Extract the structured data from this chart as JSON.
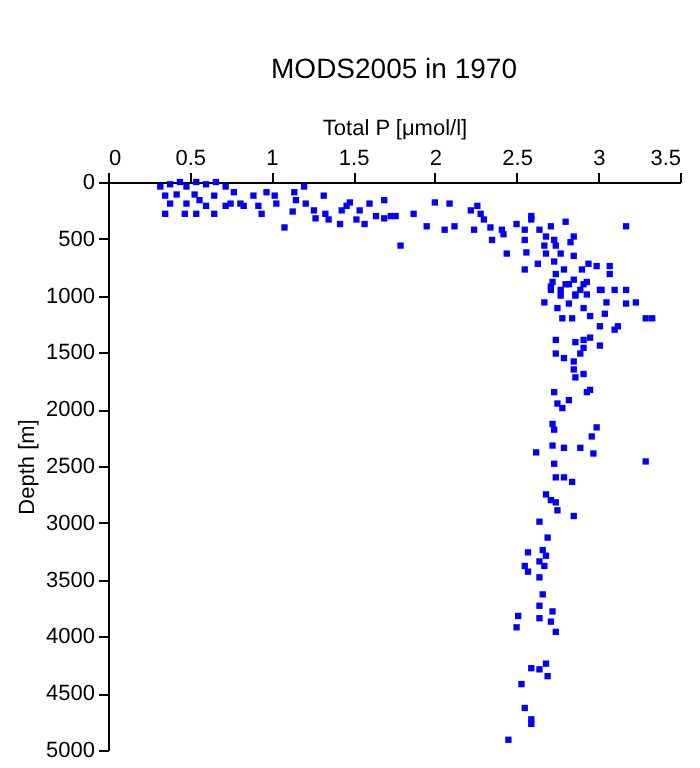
{
  "chart_data": {
    "type": "scatter",
    "title": "MODS2005 in 1970",
    "xlabel": "Total P [μmol/l]",
    "ylabel": "Depth [m]",
    "xlim": [
      0,
      3.5
    ],
    "xticks": [
      0,
      0.5,
      1,
      1.5,
      2,
      2.5,
      3,
      3.5
    ],
    "ylim": [
      5000,
      0
    ],
    "yticks": [
      0,
      500,
      1000,
      1500,
      2000,
      2500,
      3000,
      3500,
      4000,
      4500,
      5000
    ],
    "grid": false,
    "marker": "square",
    "series": [
      {
        "color": "#0000ff",
        "x": [
          0.32,
          0.38,
          0.44,
          0.48,
          0.54,
          0.6,
          0.66,
          0.35,
          0.42,
          0.53,
          0.56,
          0.48,
          0.38,
          0.65,
          0.72,
          0.77,
          0.75,
          0.81,
          0.6,
          0.72,
          0.47,
          0.35,
          0.54,
          0.65,
          0.83,
          0.89,
          0.92,
          0.94,
          0.97,
          1.02,
          1.03,
          1.08,
          1.13,
          1.14,
          1.15,
          1.2,
          1.21,
          1.26,
          1.27,
          1.32,
          1.33,
          1.35,
          1.42,
          1.43,
          1.46,
          1.48,
          1.52,
          1.54,
          1.57,
          1.6,
          1.64,
          1.69,
          1.69,
          1.73,
          1.76,
          1.79,
          1.87,
          1.95,
          2.0,
          2.06,
          2.09,
          2.12,
          2.22,
          2.26,
          2.28,
          2.24,
          2.3,
          2.34,
          2.35,
          2.41,
          2.42,
          2.44,
          2.5,
          2.55,
          2.55,
          2.56,
          2.59,
          2.59,
          2.64,
          2.67,
          2.68,
          2.68,
          2.71,
          2.73,
          2.74,
          2.77,
          2.8,
          2.83,
          2.85,
          2.85,
          2.55,
          2.63,
          2.73,
          2.74,
          2.79,
          2.85,
          2.9,
          2.94,
          2.99,
          3.07,
          3.07,
          3.17,
          3.17,
          3.1,
          3.01,
          2.71,
          2.8,
          2.91,
          2.86,
          2.72,
          2.82,
          2.93,
          2.71,
          2.77,
          2.89,
          3.02,
          2.77,
          2.86,
          2.93,
          2.67,
          2.75,
          2.82,
          2.91,
          3.05,
          3.17,
          3.23,
          2.78,
          2.84,
          2.95,
          3.04,
          3.29,
          3.33,
          3.01,
          3.12,
          3.1,
          2.74,
          2.86,
          2.91,
          2.95,
          2.91,
          3.01,
          2.74,
          2.79,
          2.89,
          2.85,
          2.85,
          2.91,
          2.86,
          2.73,
          2.82,
          2.93,
          2.95,
          2.75,
          2.78,
          2.72,
          2.73,
          2.99,
          2.96,
          2.72,
          2.79,
          2.89,
          2.97,
          2.62,
          3.29,
          2.73,
          2.74,
          2.79,
          2.84,
          2.68,
          2.71,
          2.74,
          2.75,
          2.85,
          2.64,
          2.69,
          2.57,
          2.66,
          2.68,
          2.64,
          2.55,
          2.67,
          2.57,
          2.64,
          2.66,
          2.64,
          2.64,
          2.51,
          2.72,
          2.71,
          2.5,
          2.74,
          2.68,
          2.59,
          2.64,
          2.69,
          2.53,
          2.55,
          2.59,
          2.59,
          2.45
        ],
        "values": [
          40,
          20,
          0,
          40,
          0,
          20,
          0,
          120,
          110,
          110,
          160,
          190,
          190,
          120,
          40,
          90,
          190,
          190,
          210,
          210,
          280,
          280,
          280,
          280,
          210,
          120,
          210,
          280,
          90,
          120,
          190,
          400,
          260,
          90,
          160,
          40,
          190,
          250,
          320,
          120,
          280,
          330,
          370,
          250,
          210,
          180,
          330,
          250,
          370,
          190,
          300,
          160,
          320,
          300,
          300,
          560,
          280,
          390,
          180,
          420,
          190,
          390,
          250,
          210,
          280,
          420,
          330,
          400,
          510,
          420,
          460,
          630,
          370,
          420,
          510,
          620,
          300,
          330,
          420,
          560,
          480,
          630,
          390,
          510,
          560,
          630,
          350,
          530,
          480,
          650,
          770,
          720,
          700,
          810,
          770,
          860,
          770,
          720,
          740,
          740,
          810,
          390,
          950,
          950,
          950,
          920,
          900,
          900,
          990,
          880,
          900,
          880,
          950,
          950,
          950,
          950,
          1000,
          1000,
          990,
          1060,
          1110,
          1070,
          1110,
          1060,
          1070,
          1060,
          1200,
          1200,
          1180,
          1160,
          1200,
          1200,
          1270,
          1270,
          1300,
          1390,
          1410,
          1390,
          1370,
          1460,
          1440,
          1510,
          1550,
          1510,
          1580,
          1650,
          1690,
          1720,
          1850,
          1920,
          1850,
          1830,
          1950,
          1990,
          2130,
          2180,
          2160,
          2240,
          2320,
          2340,
          2340,
          2390,
          2380,
          2460,
          2480,
          2600,
          2600,
          2640,
          2750,
          2800,
          2820,
          2890,
          2940,
          2990,
          3130,
          3260,
          3240,
          3290,
          3340,
          3380,
          3380,
          3430,
          3480,
          3630,
          3730,
          3840,
          3820,
          3780,
          3870,
          3920,
          3960,
          4240,
          4280,
          4290,
          4350,
          4420,
          4630,
          4730,
          4770,
          4910
        ]
      }
    ]
  }
}
